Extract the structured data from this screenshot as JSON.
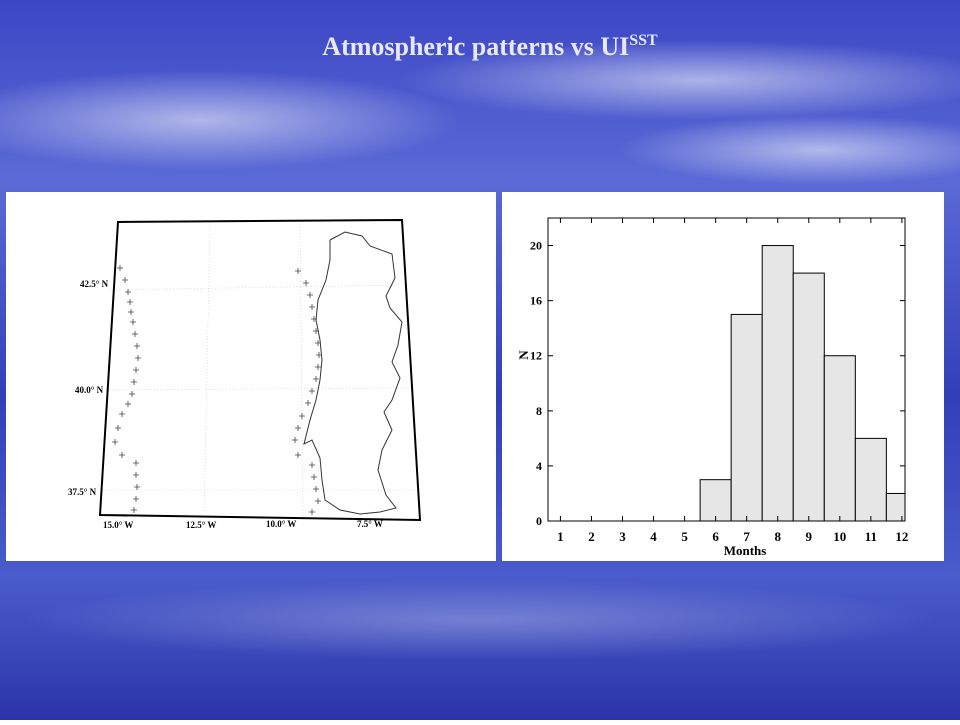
{
  "slide_title": {
    "main": "Atmospheric patterns vs UI",
    "sup": "SST"
  },
  "map": {
    "lat_labels": [
      "42.5° N",
      "40.0° N",
      "37.5° N"
    ],
    "lon_labels": [
      "15.0° W",
      "12.5° W",
      "10.0° W",
      "7.5° W"
    ]
  },
  "chart_data": {
    "type": "histogram",
    "x_label": "Months",
    "y_label": "N",
    "bins": [
      5.5,
      6.5,
      7.5,
      8.5,
      9.5,
      10.5,
      11.5,
      12.5
    ],
    "counts": [
      3,
      15,
      20,
      18,
      12,
      6,
      2
    ],
    "color": "#e6e6e6",
    "xlim": [
      0.6,
      12.1
    ],
    "ylim": [
      0,
      22
    ],
    "xticks": [
      1,
      2,
      3,
      4,
      5,
      6,
      7,
      8,
      9,
      10,
      11,
      12
    ],
    "yticks": [
      0,
      4,
      8,
      12,
      16,
      20
    ]
  }
}
